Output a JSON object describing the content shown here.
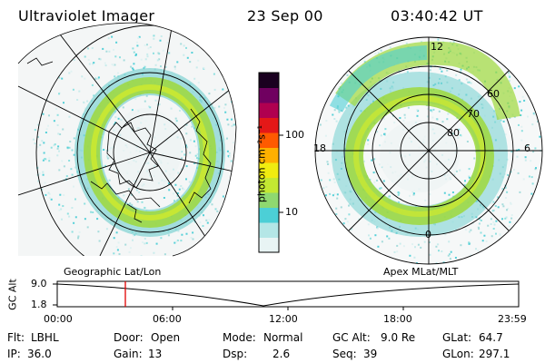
{
  "header": {
    "instrument": "Ultraviolet Imager",
    "date": "23 Sep 00",
    "time": "03:40:42 UT"
  },
  "left_panel": {
    "caption": "Geographic Lat/Lon"
  },
  "right_panel": {
    "caption": "Apex MLat/MLT",
    "mlt_labels": [
      "12",
      "18",
      "6",
      "0"
    ],
    "mlat_labels": [
      "60",
      "70",
      "80"
    ]
  },
  "colorbar": {
    "unit_label": "photon cm⁻²s⁻¹",
    "ticks": [
      "100",
      "10"
    ],
    "colors": [
      "#e8f4f4",
      "#b4e6e6",
      "#4ccfd6",
      "#8fd870",
      "#c4e832",
      "#f0ec10",
      "#ffb000",
      "#ff5a00",
      "#e41818",
      "#b00050",
      "#700060",
      "#1a0020"
    ]
  },
  "altitude_plot": {
    "ylabel": "GC Alt",
    "y_ticks": [
      "9.0",
      "1.8"
    ],
    "x_ticks": [
      "00:00",
      "06:00",
      "12:00",
      "18:00",
      "23:59"
    ],
    "marker_color": "#e00000"
  },
  "status": {
    "row1": [
      {
        "label": "Flt:",
        "value": "LBHL"
      },
      {
        "label": "Door:",
        "value": "Open"
      },
      {
        "label": "Mode:",
        "value": "Normal"
      },
      {
        "label": "GC Alt:",
        "value": "9.0 Re"
      },
      {
        "label": "GLat:",
        "value": "64.7"
      }
    ],
    "row2": [
      {
        "label": "IP:",
        "value": "36.0"
      },
      {
        "label": "Gain:",
        "value": "13"
      },
      {
        "label": "Dsp:",
        "value": "2.6"
      },
      {
        "label": "Seq:",
        "value": "39"
      },
      {
        "label": "GLon:",
        "value": "297.1"
      }
    ]
  }
}
